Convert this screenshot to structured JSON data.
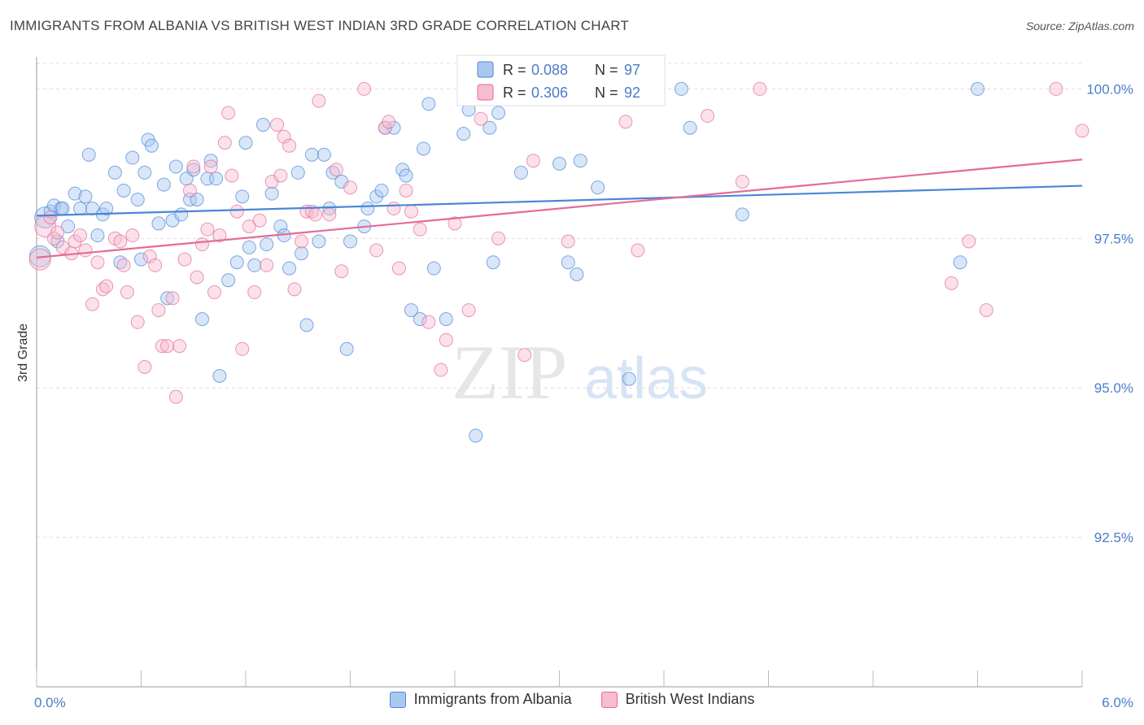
{
  "header": {
    "title": "IMMIGRANTS FROM ALBANIA VS BRITISH WEST INDIAN 3RD GRADE CORRELATION CHART",
    "source": "Source: ZipAtlas.com"
  },
  "watermark": {
    "zip": "ZIP",
    "atlas": "atlas"
  },
  "colors": {
    "blue": "#4a86d6",
    "blue_fill": "#a9c8ef",
    "pink": "#e56b97",
    "pink_fill": "#f6bcd0",
    "axis_text": "#4a7cc9",
    "grid": "#dddddd"
  },
  "stats_legend": [
    {
      "series": "Immigrants from Albania",
      "r_label": "R =",
      "r_value": "0.088",
      "n_label": "N =",
      "n_value": "97",
      "color": "blue"
    },
    {
      "series": "British West Indians",
      "r_label": "R =",
      "r_value": "0.306",
      "n_label": "N =",
      "n_value": "92",
      "color": "pink"
    }
  ],
  "chart_data": {
    "type": "scatter",
    "title": "IMMIGRANTS FROM ALBANIA VS BRITISH WEST INDIAN 3RD GRADE CORRELATION CHART",
    "xlabel": "",
    "ylabel": "3rd Grade",
    "xlim": [
      0.0,
      6.0
    ],
    "ylim": [
      90.0,
      100.4
    ],
    "x_tick_labels": [
      "0.0%",
      "6.0%"
    ],
    "y_ticks": [
      92.5,
      95.0,
      97.5,
      100.0
    ],
    "y_tick_labels": [
      "92.5%",
      "95.0%",
      "97.5%",
      "100.0%"
    ],
    "grid": true,
    "legend_position": "bottom",
    "series": [
      {
        "name": "Immigrants from Albania",
        "color": "blue",
        "trend": {
          "x": [
            0.0,
            6.0
          ],
          "y": [
            97.88,
            98.38
          ]
        },
        "points": [
          [
            0.02,
            97.2
          ],
          [
            0.05,
            97.85
          ],
          [
            0.08,
            97.95
          ],
          [
            0.1,
            98.05
          ],
          [
            0.12,
            97.45
          ],
          [
            0.14,
            98.0
          ],
          [
            0.18,
            97.7
          ],
          [
            0.22,
            98.25
          ],
          [
            0.25,
            98.0
          ],
          [
            0.28,
            98.2
          ],
          [
            0.3,
            98.9
          ],
          [
            0.32,
            98.0
          ],
          [
            0.35,
            97.55
          ],
          [
            0.38,
            97.9
          ],
          [
            0.4,
            98.0
          ],
          [
            0.45,
            98.6
          ],
          [
            0.5,
            98.3
          ],
          [
            0.55,
            98.85
          ],
          [
            0.58,
            98.15
          ],
          [
            0.6,
            97.15
          ],
          [
            0.62,
            98.6
          ],
          [
            0.64,
            99.15
          ],
          [
            0.66,
            99.05
          ],
          [
            0.7,
            97.75
          ],
          [
            0.73,
            98.4
          ],
          [
            0.75,
            96.5
          ],
          [
            0.78,
            97.8
          ],
          [
            0.8,
            98.7
          ],
          [
            0.83,
            97.9
          ],
          [
            0.86,
            98.5
          ],
          [
            0.88,
            98.15
          ],
          [
            0.9,
            98.65
          ],
          [
            0.92,
            98.15
          ],
          [
            0.95,
            96.15
          ],
          [
            0.98,
            98.5
          ],
          [
            1.0,
            98.8
          ],
          [
            1.05,
            95.2
          ],
          [
            1.1,
            96.8
          ],
          [
            1.15,
            97.1
          ],
          [
            1.18,
            98.2
          ],
          [
            1.2,
            99.1
          ],
          [
            1.22,
            97.35
          ],
          [
            1.25,
            97.05
          ],
          [
            1.3,
            99.4
          ],
          [
            1.32,
            97.4
          ],
          [
            1.35,
            98.25
          ],
          [
            1.4,
            97.7
          ],
          [
            1.42,
            97.55
          ],
          [
            1.45,
            97.0
          ],
          [
            1.5,
            98.6
          ],
          [
            1.52,
            97.25
          ],
          [
            1.55,
            96.05
          ],
          [
            1.58,
            98.9
          ],
          [
            1.62,
            97.45
          ],
          [
            1.65,
            98.9
          ],
          [
            1.68,
            98.0
          ],
          [
            1.7,
            98.6
          ],
          [
            1.75,
            98.45
          ],
          [
            1.78,
            95.65
          ],
          [
            1.8,
            97.45
          ],
          [
            1.88,
            97.7
          ],
          [
            1.9,
            98.0
          ],
          [
            1.95,
            98.2
          ],
          [
            1.98,
            98.3
          ],
          [
            2.0,
            99.35
          ],
          [
            2.05,
            99.35
          ],
          [
            2.1,
            98.65
          ],
          [
            2.12,
            98.55
          ],
          [
            2.15,
            96.3
          ],
          [
            2.2,
            96.15
          ],
          [
            2.22,
            99.0
          ],
          [
            2.25,
            99.75
          ],
          [
            2.28,
            97.0
          ],
          [
            2.35,
            96.15
          ],
          [
            2.45,
            99.25
          ],
          [
            2.52,
            94.2
          ],
          [
            2.6,
            99.35
          ],
          [
            2.62,
            97.1
          ],
          [
            2.65,
            99.6
          ],
          [
            2.72,
            99.9
          ],
          [
            2.78,
            98.6
          ],
          [
            3.0,
            98.75
          ],
          [
            3.05,
            97.1
          ],
          [
            3.1,
            96.9
          ],
          [
            3.12,
            98.8
          ],
          [
            3.22,
            98.35
          ],
          [
            3.4,
            95.15
          ],
          [
            3.5,
            100.0
          ],
          [
            3.7,
            100.0
          ],
          [
            3.75,
            99.35
          ],
          [
            4.05,
            97.9
          ],
          [
            5.3,
            97.1
          ],
          [
            5.4,
            100.0
          ],
          [
            0.15,
            98.0
          ],
          [
            0.48,
            97.1
          ],
          [
            1.03,
            98.5
          ],
          [
            2.48,
            99.65
          ]
        ]
      },
      {
        "name": "British West Indians",
        "color": "pink",
        "trend": {
          "x": [
            0.0,
            6.0
          ],
          "y": [
            97.18,
            98.82
          ]
        },
        "points": [
          [
            0.02,
            97.15
          ],
          [
            0.05,
            97.7
          ],
          [
            0.08,
            97.85
          ],
          [
            0.1,
            97.5
          ],
          [
            0.12,
            97.6
          ],
          [
            0.15,
            97.35
          ],
          [
            0.2,
            97.25
          ],
          [
            0.22,
            97.45
          ],
          [
            0.25,
            97.55
          ],
          [
            0.28,
            97.3
          ],
          [
            0.32,
            96.4
          ],
          [
            0.35,
            97.1
          ],
          [
            0.38,
            96.65
          ],
          [
            0.4,
            96.7
          ],
          [
            0.45,
            97.5
          ],
          [
            0.48,
            97.45
          ],
          [
            0.5,
            97.05
          ],
          [
            0.52,
            96.6
          ],
          [
            0.55,
            97.55
          ],
          [
            0.58,
            96.1
          ],
          [
            0.62,
            95.35
          ],
          [
            0.65,
            97.2
          ],
          [
            0.68,
            97.05
          ],
          [
            0.7,
            96.3
          ],
          [
            0.72,
            95.7
          ],
          [
            0.75,
            95.7
          ],
          [
            0.78,
            96.5
          ],
          [
            0.8,
            94.85
          ],
          [
            0.82,
            95.7
          ],
          [
            0.85,
            97.15
          ],
          [
            0.88,
            98.3
          ],
          [
            0.9,
            98.7
          ],
          [
            0.92,
            96.85
          ],
          [
            0.95,
            97.4
          ],
          [
            0.98,
            97.65
          ],
          [
            1.0,
            98.7
          ],
          [
            1.02,
            96.6
          ],
          [
            1.05,
            97.55
          ],
          [
            1.08,
            99.1
          ],
          [
            1.1,
            99.6
          ],
          [
            1.12,
            98.55
          ],
          [
            1.15,
            97.95
          ],
          [
            1.18,
            95.65
          ],
          [
            1.22,
            97.7
          ],
          [
            1.25,
            96.6
          ],
          [
            1.28,
            97.8
          ],
          [
            1.32,
            97.05
          ],
          [
            1.35,
            98.45
          ],
          [
            1.38,
            99.4
          ],
          [
            1.4,
            98.55
          ],
          [
            1.42,
            99.2
          ],
          [
            1.45,
            99.05
          ],
          [
            1.48,
            96.65
          ],
          [
            1.52,
            97.45
          ],
          [
            1.55,
            97.95
          ],
          [
            1.58,
            97.95
          ],
          [
            1.6,
            97.9
          ],
          [
            1.62,
            99.8
          ],
          [
            1.68,
            97.9
          ],
          [
            1.72,
            98.65
          ],
          [
            1.75,
            96.95
          ],
          [
            1.8,
            98.35
          ],
          [
            1.88,
            100.0
          ],
          [
            1.95,
            97.3
          ],
          [
            2.0,
            99.35
          ],
          [
            2.02,
            99.45
          ],
          [
            2.05,
            98.0
          ],
          [
            2.08,
            97.0
          ],
          [
            2.12,
            98.3
          ],
          [
            2.15,
            97.95
          ],
          [
            2.2,
            97.65
          ],
          [
            2.25,
            96.1
          ],
          [
            2.32,
            95.3
          ],
          [
            2.35,
            95.8
          ],
          [
            2.4,
            97.75
          ],
          [
            2.48,
            96.3
          ],
          [
            2.55,
            99.5
          ],
          [
            2.65,
            97.5
          ],
          [
            2.8,
            95.55
          ],
          [
            2.85,
            98.8
          ],
          [
            3.05,
            97.45
          ],
          [
            3.38,
            99.45
          ],
          [
            3.45,
            97.3
          ],
          [
            3.5,
            100.0
          ],
          [
            3.85,
            99.55
          ],
          [
            4.05,
            98.45
          ],
          [
            4.15,
            100.0
          ],
          [
            5.25,
            96.75
          ],
          [
            5.35,
            97.45
          ],
          [
            5.45,
            96.3
          ],
          [
            5.85,
            100.0
          ],
          [
            6.0,
            99.3
          ]
        ]
      }
    ]
  }
}
